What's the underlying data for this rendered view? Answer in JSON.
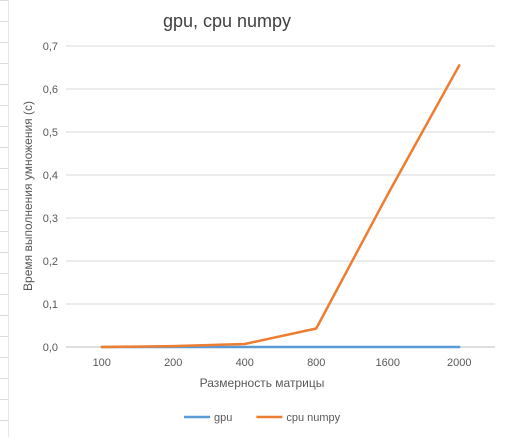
{
  "chart_data": {
    "type": "line",
    "title": "gpu, cpu numpy",
    "xlabel": "Размерность матрицы",
    "ylabel": "Время выполнения умножения (с)",
    "categories": [
      "100",
      "200",
      "400",
      "800",
      "1600",
      "2000"
    ],
    "ylim": [
      0,
      0.7
    ],
    "yticks": [
      "0,0",
      "0,1",
      "0,2",
      "0,3",
      "0,4",
      "0,5",
      "0,6",
      "0,7"
    ],
    "grid": true,
    "legend_position": "bottom",
    "series": [
      {
        "name": "gpu",
        "color": "#5B9BD5",
        "values": [
          0,
          0,
          0,
          0,
          0,
          0
        ]
      },
      {
        "name": "cpu numpy",
        "color": "#ED7D31",
        "values": [
          0,
          0.002,
          0.007,
          0.043,
          0.355,
          0.655
        ]
      }
    ]
  }
}
